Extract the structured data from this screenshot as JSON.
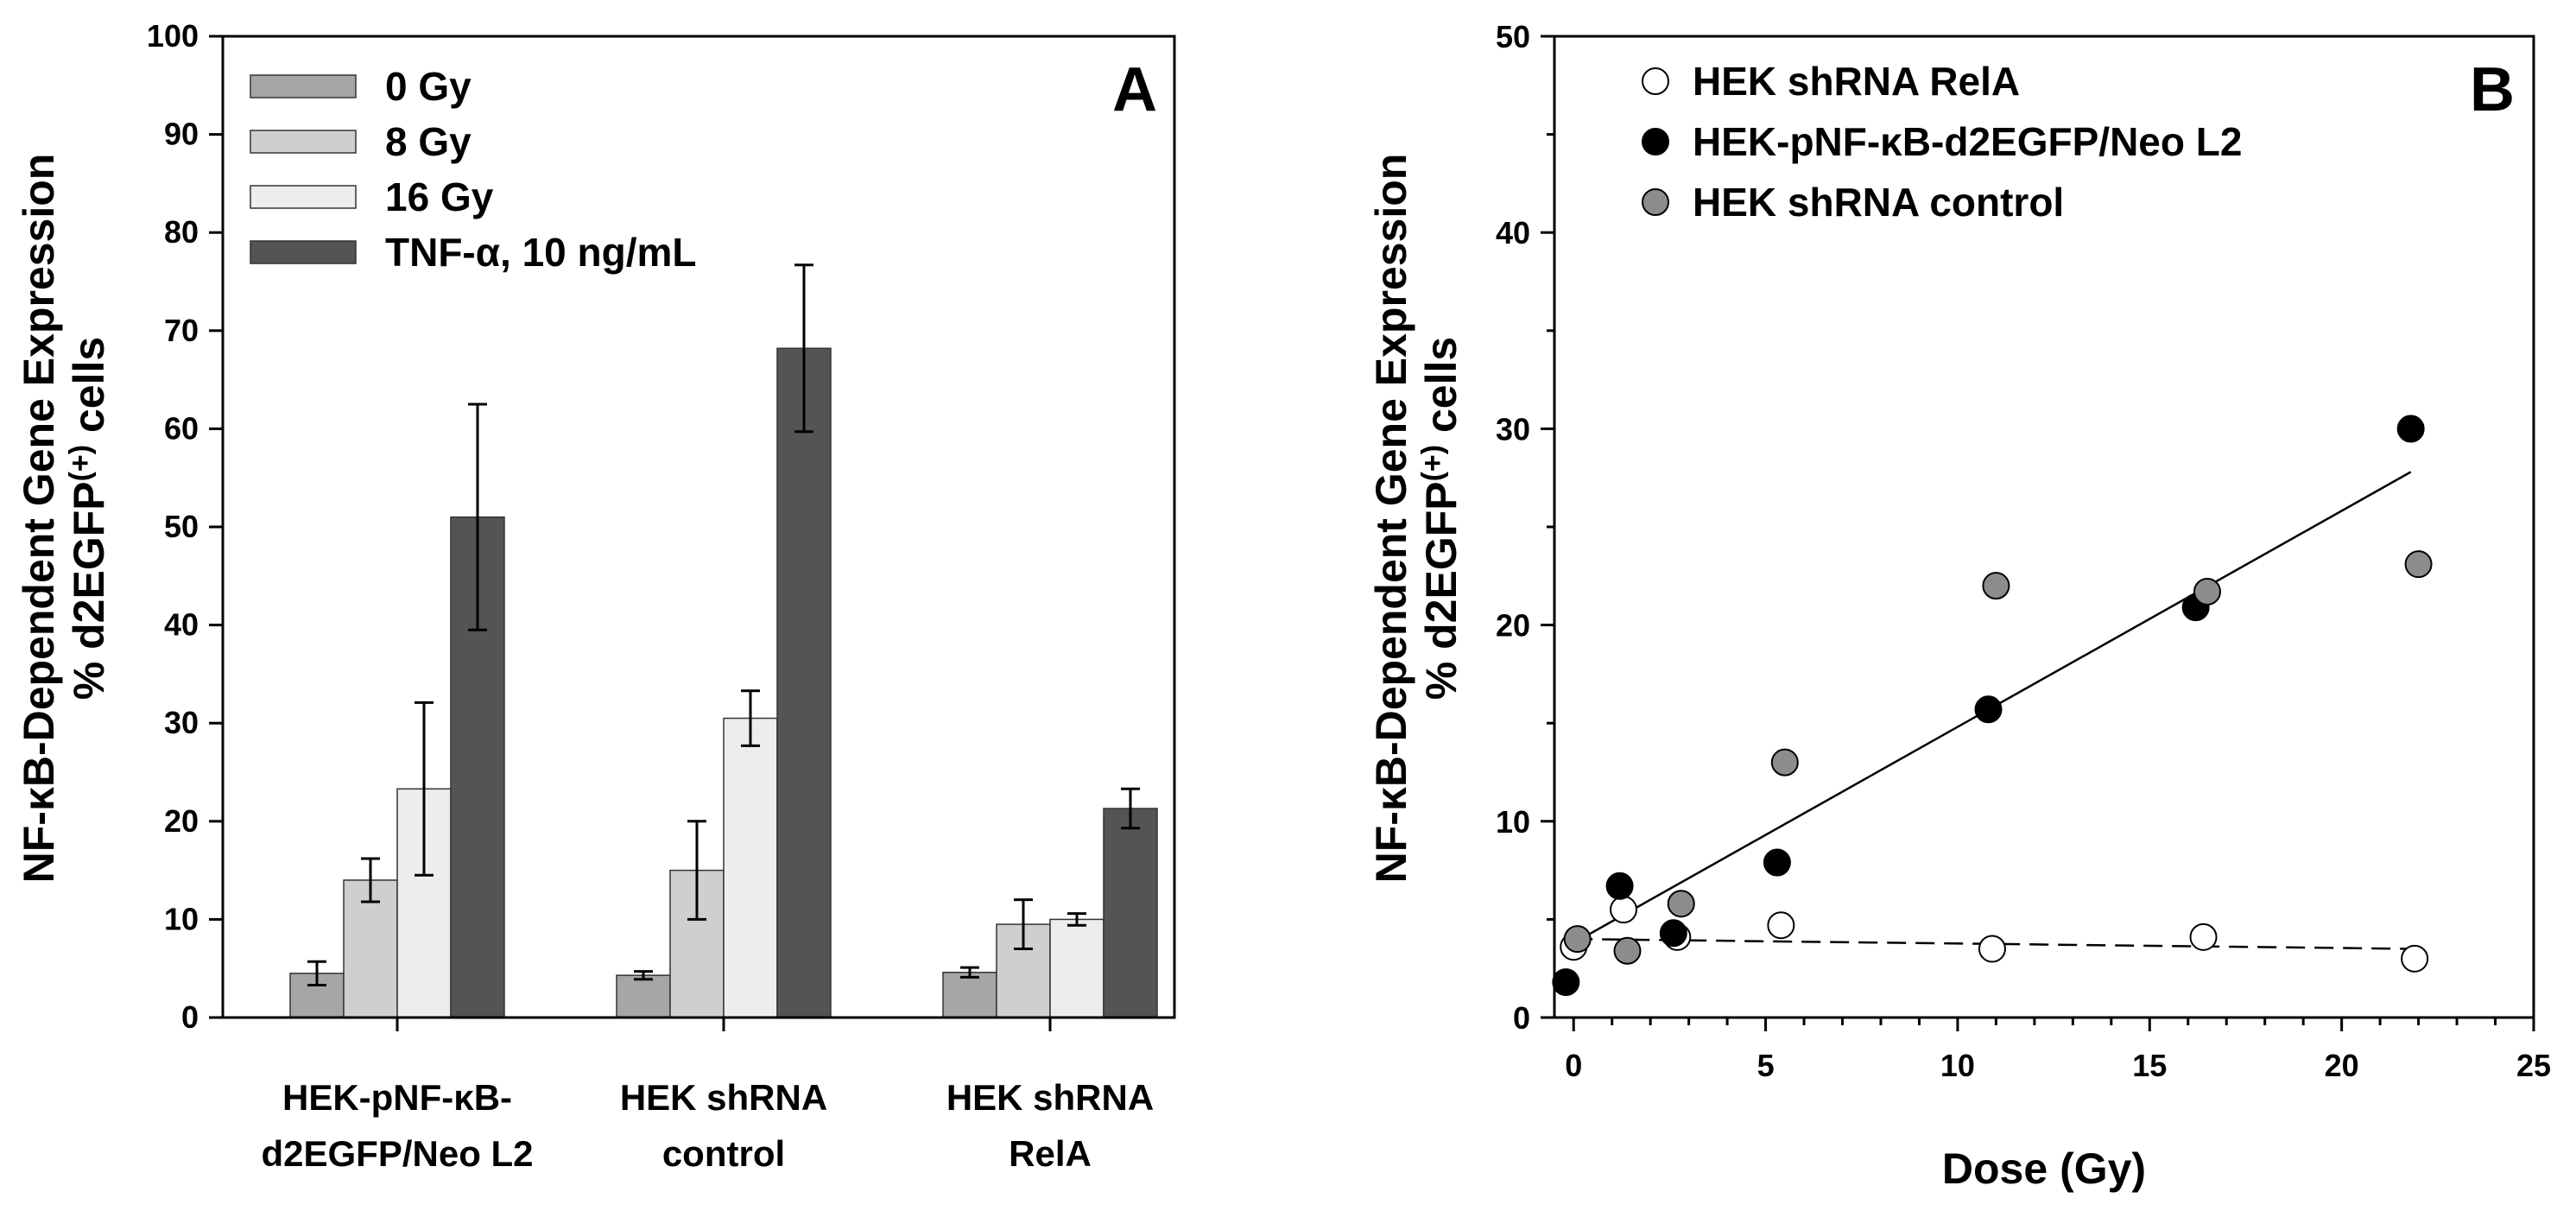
{
  "chart_data": [
    {
      "type": "bar",
      "panel_label": "A",
      "title": "",
      "ylabel_line1": "NF-κB-Dependent Gene Expression",
      "ylabel_line2": "% d2EGFP",
      "ylabel_sup": "(+)",
      "ylabel_suffix": " cells",
      "xlabel": "",
      "ylim": [
        0,
        100
      ],
      "yticks": [
        0,
        10,
        20,
        30,
        40,
        50,
        60,
        70,
        80,
        90,
        100
      ],
      "legend_position": "top-left",
      "categories": [
        {
          "line1": "HEK-pNF-κB-",
          "line2": "d2EGFP/Neo L2"
        },
        {
          "line1": "HEK shRNA",
          "line2": "control"
        },
        {
          "line1": "HEK shRNA",
          "line2": "RelA"
        }
      ],
      "series": [
        {
          "name": "0 Gy",
          "color": "#a6a6a6",
          "values": [
            4.5,
            4.3,
            4.6
          ],
          "errors": [
            1.2,
            0.4,
            0.5
          ]
        },
        {
          "name": "8 Gy",
          "color": "#cfcfcf",
          "values": [
            14.0,
            15.0,
            9.5
          ],
          "errors": [
            2.2,
            5.0,
            2.5
          ]
        },
        {
          "name": "16 Gy",
          "color": "#ededed",
          "values": [
            23.3,
            30.5,
            10.0
          ],
          "errors": [
            8.8,
            2.8,
            0.6
          ]
        },
        {
          "name": "TNF-α, 10 ng/mL",
          "color": "#545454",
          "values": [
            51.0,
            68.2,
            21.3
          ],
          "errors": [
            11.5,
            8.5,
            2.0
          ]
        }
      ]
    },
    {
      "type": "scatter",
      "panel_label": "B",
      "title": "",
      "xlabel": "Dose (Gy)",
      "ylabel_line1": "NF-κB-Dependent Gene Expression",
      "ylabel_line2": "% d2EGFP",
      "ylabel_sup": "(+)",
      "ylabel_suffix": " cells",
      "xlim": [
        -0.5,
        25
      ],
      "ylim": [
        0,
        50
      ],
      "xticks": [
        0,
        5,
        10,
        15,
        20,
        25
      ],
      "yticks": [
        0,
        10,
        20,
        30,
        40,
        50
      ],
      "legend_position": "top-left",
      "series": [
        {
          "name": "HEK shRNA RelA",
          "marker_fill": "#ffffff",
          "x": [
            0,
            1.3,
            2.7,
            5.4,
            10.9,
            16.4,
            21.9
          ],
          "y": [
            3.6,
            5.5,
            4.1,
            4.7,
            3.5,
            4.1,
            3.0
          ],
          "fit": {
            "x": [
              0,
              21.8
            ],
            "y": [
              4.0,
              3.5
            ],
            "style": "dashed"
          }
        },
        {
          "name": "HEK-pNF-κB-d2EGFP/Neo L2",
          "marker_fill": "#000000",
          "x": [
            -0.2,
            1.2,
            2.6,
            5.3,
            10.8,
            16.2,
            21.8
          ],
          "y": [
            1.8,
            6.7,
            4.3,
            7.9,
            15.7,
            20.9,
            30.0
          ],
          "fit": {
            "x": [
              0,
              21.8
            ],
            "y": [
              3.8,
              27.8
            ],
            "style": "solid"
          }
        },
        {
          "name": "HEK shRNA control",
          "marker_fill": "#8c8c8c",
          "x": [
            0.1,
            1.4,
            2.8,
            5.5,
            11.0,
            16.5,
            22.0
          ],
          "y": [
            4.0,
            3.4,
            5.8,
            13.0,
            22.0,
            21.7,
            23.1
          ]
        }
      ]
    }
  ]
}
